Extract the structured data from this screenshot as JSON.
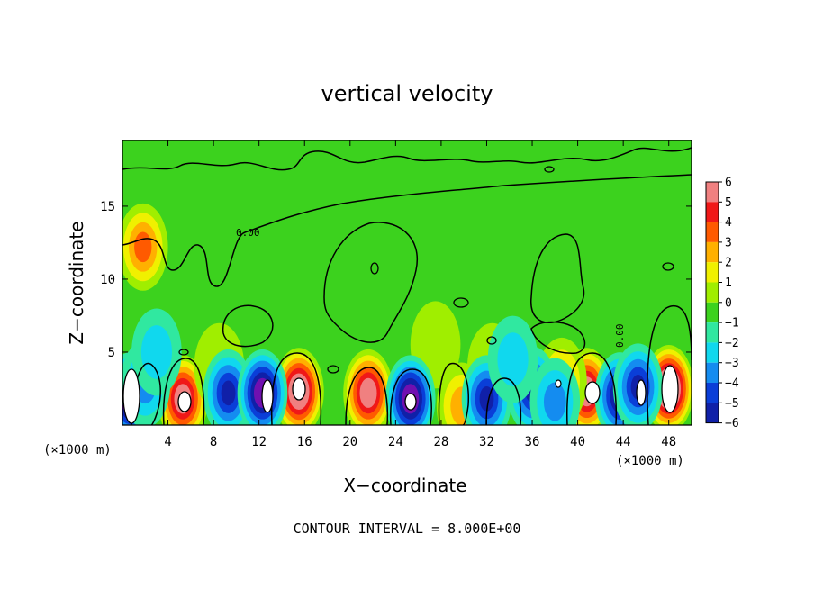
{
  "chart_data": {
    "type": "heatmap",
    "title": "vertical velocity",
    "xlabel": "X−coordinate",
    "ylabel": "Z−coordinate",
    "x_unit_left": "(×1000 m)",
    "x_unit_right": "(×1000 m)",
    "xlim": [
      0,
      50
    ],
    "ylim": [
      0,
      19.5
    ],
    "x_ticks": [
      4,
      8,
      12,
      16,
      20,
      24,
      28,
      32,
      36,
      40,
      44,
      48
    ],
    "y_ticks": [
      5,
      10,
      15
    ],
    "colorbar": {
      "levels": [
        6,
        5,
        4,
        3,
        2,
        1,
        0,
        -1,
        -2,
        -3,
        -4,
        -5,
        -6
      ],
      "labels": [
        "6",
        "5",
        "4",
        "3",
        "2",
        "1",
        "0",
        "−1",
        "−2",
        "−3",
        "−4",
        "−5",
        "−6"
      ],
      "colors": [
        "#f08080",
        "#f01818",
        "#ff5a00",
        "#ffb000",
        "#f0f000",
        "#a0ee00",
        "#3cd21e",
        "#30e8a0",
        "#10d8ee",
        "#148cf0",
        "#0a3ed8",
        "#1020a8",
        "#7010b0"
      ]
    },
    "background_value": 0,
    "updrafts": [
      {
        "x": 5.3,
        "z": 1.8,
        "amp": 7.5
      },
      {
        "x": 15.5,
        "z": 2.3,
        "amp": 8.5
      },
      {
        "x": 21.6,
        "z": 2.2,
        "amp": 7.5
      },
      {
        "x": 40.8,
        "z": 2.3,
        "amp": 7.5
      },
      {
        "x": 48.0,
        "z": 2.5,
        "amp": 9.0
      },
      {
        "x": 29.8,
        "z": 1.3,
        "amp": 3.2
      },
      {
        "x": 38.6,
        "z": 3.0,
        "amp": 3.0
      },
      {
        "x": 1.8,
        "z": 12.2,
        "amp": 4.0
      },
      {
        "x": 8.5,
        "z": 4.0,
        "amp": 1.4
      },
      {
        "x": 27.5,
        "z": 5.5,
        "amp": 1.2
      },
      {
        "x": 32.5,
        "z": 4.0,
        "amp": 1.5
      }
    ],
    "downdrafts": [
      {
        "x": 0.7,
        "z": 2.0,
        "amp": -8.5
      },
      {
        "x": 2.0,
        "z": 2.8,
        "amp": -3.5
      },
      {
        "x": 9.3,
        "z": 2.2,
        "amp": -5.5
      },
      {
        "x": 12.3,
        "z": 2.2,
        "amp": -7.5
      },
      {
        "x": 25.3,
        "z": 1.8,
        "amp": -7.5
      },
      {
        "x": 32.0,
        "z": 1.8,
        "amp": -5.5
      },
      {
        "x": 36.0,
        "z": 2.4,
        "amp": -5.0
      },
      {
        "x": 43.7,
        "z": 2.0,
        "amp": -6.5
      },
      {
        "x": 45.3,
        "z": 2.6,
        "amp": -5.5
      },
      {
        "x": 38.0,
        "z": 1.6,
        "amp": -3.0
      },
      {
        "x": 34.3,
        "z": 4.5,
        "amp": -2.2
      },
      {
        "x": 3.0,
        "z": 5.0,
        "amp": -2.0
      }
    ],
    "zero_contour_labels": [
      "0.00",
      "0.00"
    ],
    "contour_interval_note": "CONTOUR INTERVAL = 8.000E+00",
    "grid": false,
    "legend": "right"
  }
}
